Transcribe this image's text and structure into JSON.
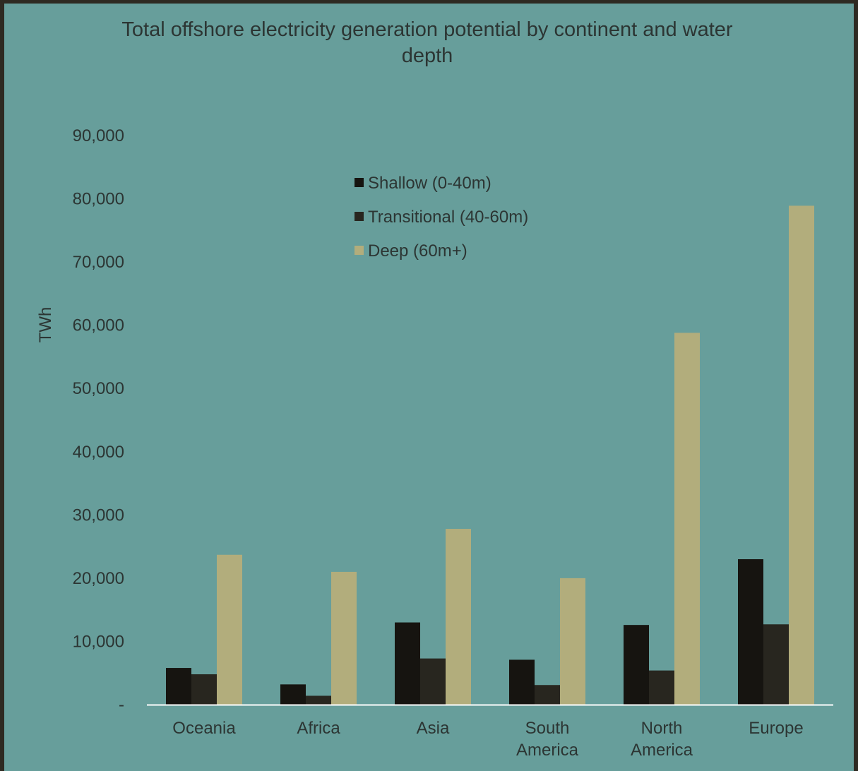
{
  "colors": {
    "background_outer": "#2e2a22",
    "plot_background": "#679e9b",
    "text": "#2c3533",
    "axis_line": "#ffffff"
  },
  "chart_data": {
    "type": "bar",
    "title": "Total offshore electricity generation potential by continent and water depth",
    "ylabel": "TWh",
    "xlabel": "",
    "ylim": [
      0,
      90000
    ],
    "yticks": [
      0,
      10000,
      20000,
      30000,
      40000,
      50000,
      60000,
      70000,
      80000,
      90000
    ],
    "ytick_labels": [
      "-",
      "10,000",
      "20,000",
      "30,000",
      "40,000",
      "50,000",
      "60,000",
      "70,000",
      "80,000",
      "90,000"
    ],
    "grid": false,
    "legend_position": "top-center",
    "categories": [
      [
        "Oceania"
      ],
      [
        "Africa"
      ],
      [
        "Asia"
      ],
      [
        "South",
        "America"
      ],
      [
        "North",
        "America"
      ],
      [
        "Europe"
      ]
    ],
    "series": [
      {
        "name": "Shallow (0-40m)",
        "color": "#161410",
        "values": [
          5800,
          3200,
          13000,
          7100,
          12600,
          23000
        ]
      },
      {
        "name": "Transitional (40-60m)",
        "color": "#28261f",
        "values": [
          4800,
          1400,
          7300,
          3100,
          5400,
          12700
        ]
      },
      {
        "name": "Deep (60m+)",
        "color": "#b2ad7c",
        "values": [
          23700,
          21000,
          27800,
          20000,
          58800,
          78900
        ]
      }
    ]
  }
}
